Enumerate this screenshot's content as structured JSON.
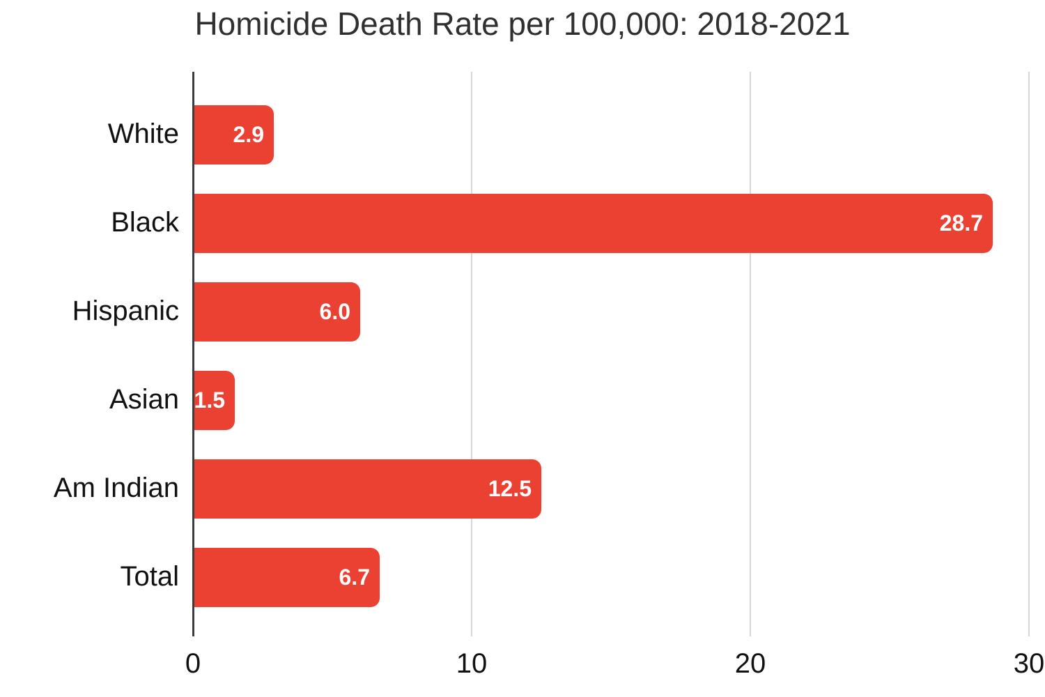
{
  "chart_data": {
    "type": "bar",
    "orientation": "horizontal",
    "title": "Homicide Death Rate per 100,000: 2018-2021",
    "categories": [
      "White",
      "Black",
      "Hispanic",
      "Asian",
      "Am Indian",
      "Total"
    ],
    "values": [
      2.9,
      28.7,
      6.0,
      1.5,
      12.5,
      6.7
    ],
    "value_labels": [
      "2.9",
      "28.7",
      "6.0",
      "1.5",
      "12.5",
      "6.7"
    ],
    "series_name": "Homicide death rate per 100,000",
    "xlabel": "",
    "ylabel": "",
    "xlim": [
      0,
      30
    ],
    "x_ticks": [
      "0",
      "10",
      "20",
      "30"
    ],
    "x_tick_values": [
      0,
      10,
      20,
      30
    ],
    "grid": true,
    "legend_position": "none",
    "colors": {
      "bar": "#ea4132",
      "value_label_text": "#ffffff",
      "gridline": "#d6d6d6",
      "axis_line": "#3c3c3c",
      "title_text": "#303030",
      "label_text": "#111111",
      "background": "#ffffff"
    }
  }
}
